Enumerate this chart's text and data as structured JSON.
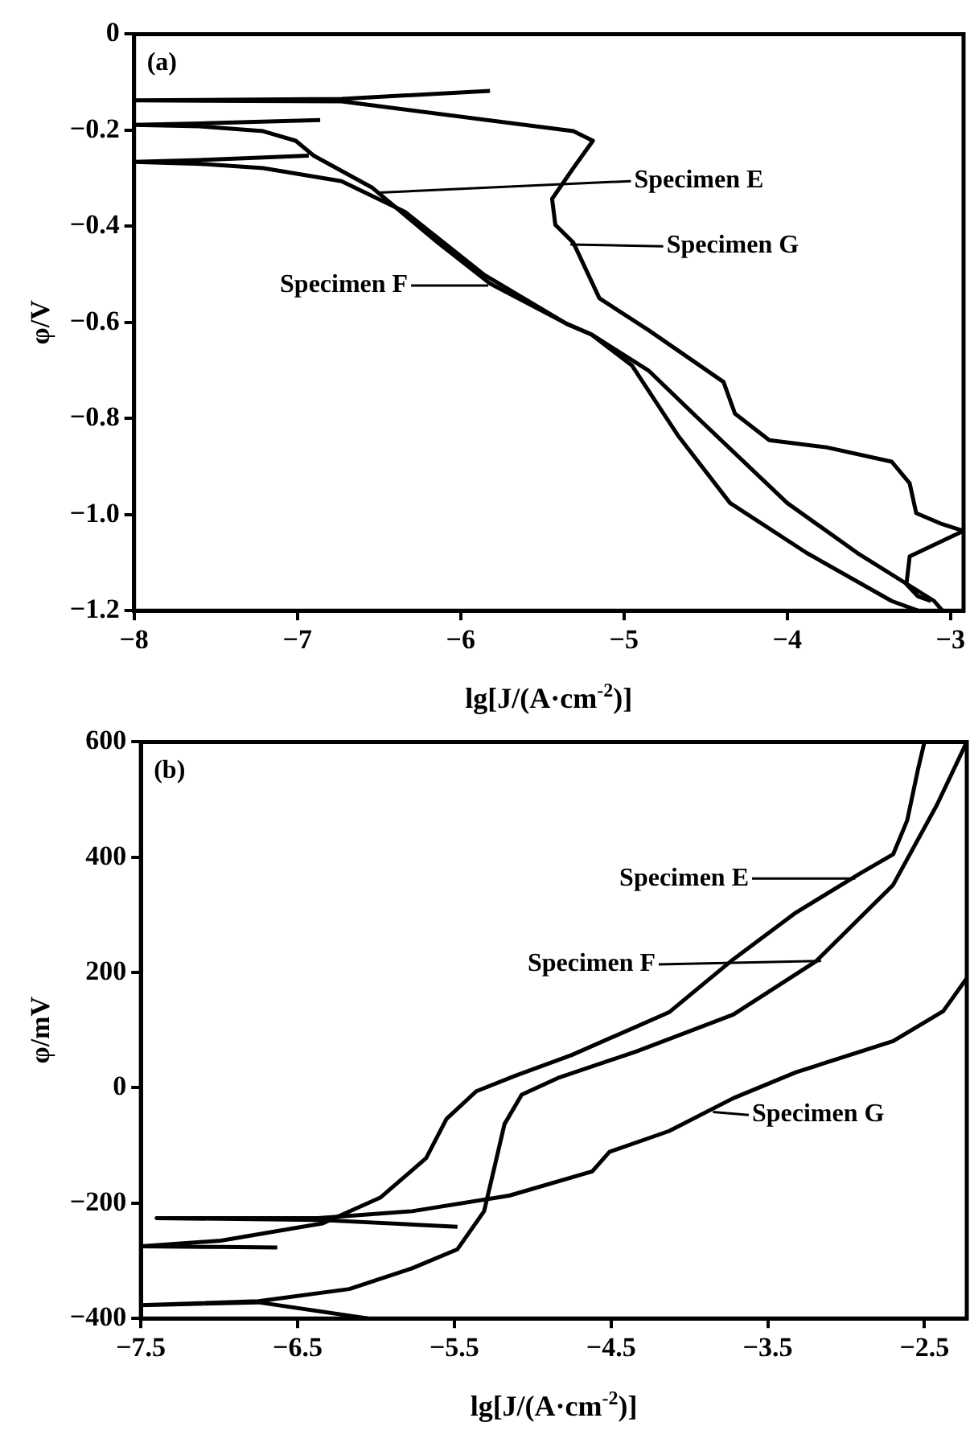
{
  "chart_data": [
    {
      "type": "line",
      "xlabel": "lg[J/(A·cm$^{-2}$)]",
      "ylabel": "φ/V",
      "xlim": [
        -8,
        -2.92
      ],
      "ylim": [
        -1.2,
        0
      ],
      "xticks": [
        -8,
        -7,
        -6,
        -5,
        -4,
        -3
      ],
      "yticks": [
        0,
        -0.2,
        -0.4,
        -0.6,
        -0.8,
        {
          "value": -1,
          "label": "−1.0"
        },
        -1.2
      ],
      "grid": false,
      "legend": false,
      "marker": "none",
      "line_style": "solid",
      "series": [
        {
          "color": "#000000",
          "x": [
            -6.86,
            -7.6,
            -8,
            -7.6,
            -7.21,
            -7.01,
            -6.9,
            -6.54,
            -6.14,
            -5.82,
            -5.35,
            -5.2,
            -4.95,
            -4.67,
            -4.35,
            -3.88,
            -3.36,
            -3.2
          ],
          "values": [
            -0.179,
            -0.186,
            -0.189,
            -0.192,
            -0.202,
            -0.222,
            -0.253,
            -0.32,
            -0.434,
            -0.519,
            -0.603,
            -0.625,
            -0.69,
            -0.835,
            -0.976,
            -1.08,
            -1.18,
            -1.2
          ]
        },
        {
          "color": "#000000",
          "x": [
            -6.93,
            -7.6,
            -8,
            -7.6,
            -7.21,
            -6.73,
            -6.34,
            -5.86,
            -5.35,
            -5.2,
            -4.85,
            -4.56,
            -4.0,
            -3.57,
            -3.1,
            -3.05
          ],
          "values": [
            -0.253,
            -0.262,
            -0.266,
            -0.27,
            -0.279,
            -0.306,
            -0.37,
            -0.5,
            -0.603,
            -0.625,
            -0.7,
            -0.795,
            -0.976,
            -1.08,
            -1.18,
            -1.2
          ]
        },
        {
          "color": "#000000",
          "x": [
            -5.82,
            -6.73,
            -8,
            -6.73,
            -5.31,
            -5.19,
            -5.31,
            -5.44,
            -5.42,
            -5.31,
            -5.15,
            -4.85,
            -4.39,
            -4.32,
            -4.11,
            -3.76,
            -3.36,
            -3.25,
            -3.21,
            -3.05,
            -2.92,
            -3.25,
            -3.27,
            -3.2,
            -3.12
          ],
          "values": [
            -0.118,
            -0.135,
            -0.138,
            -0.14,
            -0.202,
            -0.222,
            -0.279,
            -0.343,
            -0.397,
            -0.434,
            -0.55,
            -0.616,
            -0.724,
            -0.79,
            -0.845,
            -0.86,
            -0.89,
            -0.935,
            -0.997,
            -1.02,
            -1.034,
            -1.087,
            -1.145,
            -1.17,
            -1.18
          ]
        }
      ],
      "annotations": [
        "(a)",
        {
          "text": "Specimen E",
          "x": -6.5,
          "y": -0.33
        },
        "Specimen F",
        "Specimen G"
      ]
    },
    {
      "type": "line",
      "xlabel": "lg[J/(A·cm$^{-2}$)]",
      "ylabel": "φ/mV",
      "xlim": [
        -7.5,
        -2.23
      ],
      "ylim": [
        -400,
        600
      ],
      "xticks": [
        -7.5,
        -6.5,
        -5.5,
        -4.5,
        -3.5,
        -2.5
      ],
      "yticks": [
        600,
        400,
        200,
        0,
        -200,
        -400
      ],
      "grid": false,
      "legend": false,
      "marker": "none",
      "line_style": "solid",
      "series": [
        {
          "color": "#000000",
          "x": [
            -6.63,
            -7.0,
            -7.5,
            -6.99,
            -6.34,
            -5.97,
            -5.68,
            -5.55,
            -5.36,
            -5.11,
            -4.75,
            -4.13,
            -3.72,
            -3.32,
            -2.91,
            -2.7,
            -2.61,
            -2.54,
            -2.5
          ],
          "values": [
            -277,
            -276,
            -275,
            -265,
            -235,
            -190,
            -122,
            -54,
            -6,
            21,
            57,
            131,
            223,
            304,
            372,
            405,
            464,
            554,
            600
          ]
        },
        {
          "color": "#000000",
          "x": [
            -6.05,
            -6.75,
            -7.5,
            -6.75,
            -6.17,
            -5.77,
            -5.48,
            -5.31,
            -5.24,
            -5.18,
            -5.07,
            -4.83,
            -4.34,
            -3.72,
            -3.19,
            -2.7,
            -2.42,
            -2.23
          ],
          "values": [
            -400,
            -372,
            -377,
            -370,
            -349,
            -313,
            -280,
            -214,
            -133,
            -63,
            -12,
            18,
            63,
            127,
            220,
            352,
            491,
            600
          ]
        },
        {
          "color": "#000000",
          "x": [
            -5.48,
            -6.37,
            -7.4,
            -6.37,
            -5.77,
            -5.15,
            -4.62,
            -4.51,
            -4.13,
            -3.72,
            -3.32,
            -2.7,
            -2.38,
            -2.23
          ],
          "values": [
            -241,
            -229,
            -226,
            -226,
            -214,
            -187,
            -145,
            -111,
            -75,
            -18,
            27,
            81,
            133,
            190
          ]
        }
      ],
      "annotations": [
        "(b)",
        "Specimen E",
        {
          "text": "Specimen F",
          "x": -3.16,
          "y": 220
        },
        {
          "text": "Specimen G",
          "x": -3.85,
          "y": -42
        }
      ]
    }
  ]
}
